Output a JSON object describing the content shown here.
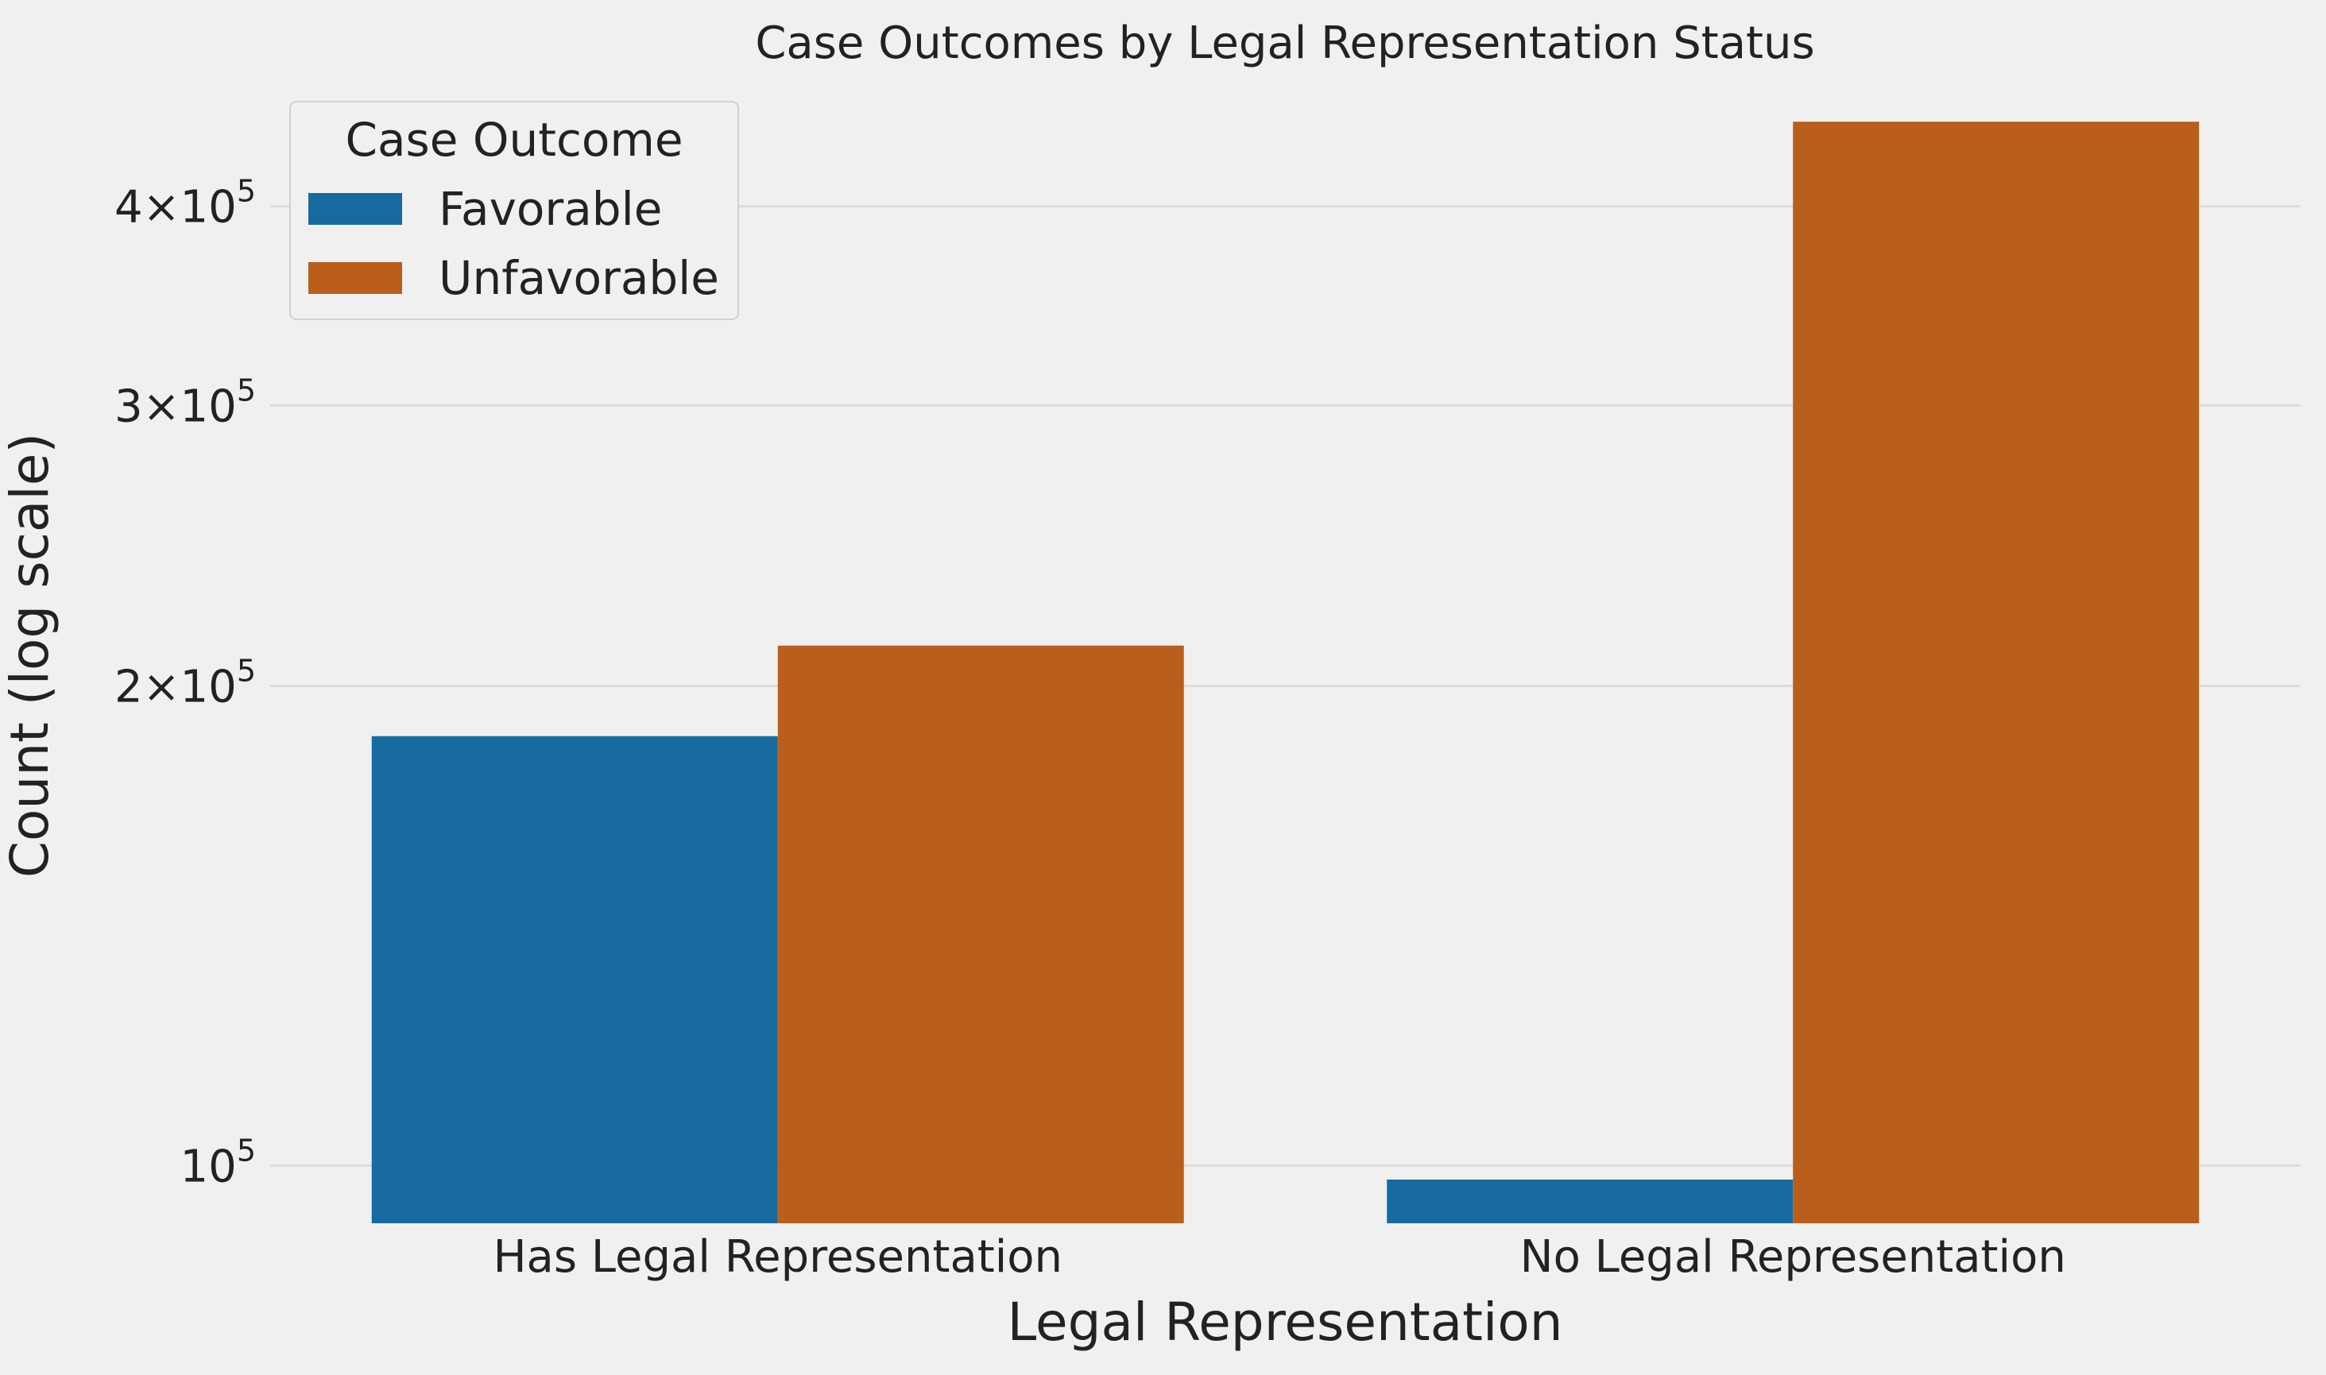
{
  "chart_data": {
    "type": "bar",
    "title": "Case Outcomes by Legal Representation Status",
    "xlabel": "Legal Representation",
    "ylabel": "Count (log scale)",
    "yscale": "log",
    "ylim": [
      92000,
      475000
    ],
    "categories": [
      "Has Legal Representation",
      "No Legal Representation"
    ],
    "series": [
      {
        "name": "Favorable",
        "color": "#176a9e",
        "values": [
          186000,
          98000
        ]
      },
      {
        "name": "Unfavorable",
        "color": "#b95e1b",
        "values": [
          212000,
          452000
        ]
      }
    ],
    "y_ticks": [
      {
        "value": 100000,
        "base": "10",
        "exp": "5"
      },
      {
        "value": 200000,
        "base": "2×10",
        "exp": "5"
      },
      {
        "value": 300000,
        "base": "3×10",
        "exp": "5"
      },
      {
        "value": 400000,
        "base": "4×10",
        "exp": "5"
      }
    ],
    "grid": true,
    "legend": {
      "title": "Case Outcome",
      "placement": "top-left"
    }
  }
}
